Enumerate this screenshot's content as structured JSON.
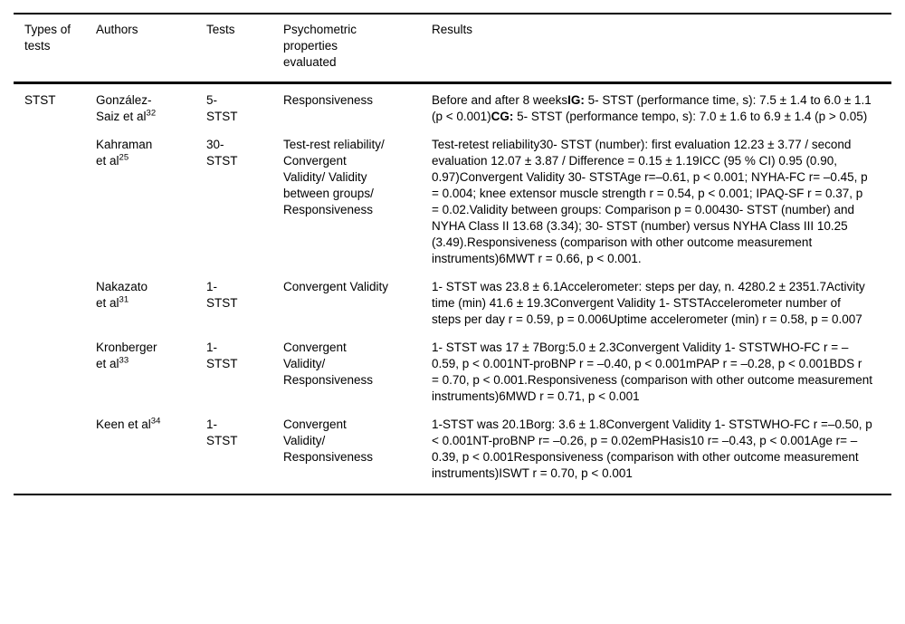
{
  "table": {
    "columns": [
      "Types of tests",
      "Authors",
      "Tests",
      "Psychometric properties evaluated",
      "Results"
    ],
    "rows": [
      {
        "type_of_test": "STST",
        "authors": "González-Saiz et al",
        "authors_ref": "32",
        "tests": "5- STST",
        "properties": "Responsiveness",
        "results": [
          {
            "text": "Before and after 8 weeks",
            "bold": false
          },
          {
            "text": "IG:",
            "bold": true
          },
          {
            "text": " 5- STST (performance time, s): 7.5 ± 1.4 to 6.0 ± 1.1 (p < 0.001)",
            "bold": false
          },
          {
            "text": "CG:",
            "bold": true
          },
          {
            "text": " 5- STST (performance tempo, s): 7.0 ± 1.6 to 6.9 ± 1.4 (p > 0.05)",
            "bold": false
          }
        ]
      },
      {
        "type_of_test": "",
        "authors": "Kahraman et al",
        "authors_ref": "25",
        "tests": "30- STST",
        "properties": "Test-rest reliability/ Convergent Validity/ Validity between groups/ Responsiveness",
        "results": [
          {
            "text": "Test-retest reliability30- STST (number): first evaluation 12.23 ± 3.77 / second evaluation 12.07 ± 3.87 / Difference = 0.15 ± 1.19ICC (95 % CI) 0.95 (0.90, 0.97)Convergent Validity 30- STSTAge r=–0.61, p < 0.001; NYHA-FC r= –0.45, p = 0.004; knee extensor muscle strength r = 0.54, p < 0.001; IPAQ-SF r = 0.37, p = 0.02.Validity between groups: Comparison p = 0.00430- STST (number) and NYHA Class II 13.68 (3.34); 30- STST (number) versus NYHA Class III 10.25 (3.49).Responsiveness (comparison with other outcome measurement instruments)6MWT r = 0.66, p < 0.001.",
            "bold": false
          }
        ]
      },
      {
        "type_of_test": "",
        "authors": "Nakazato et al",
        "authors_ref": "31",
        "tests": "1- STST",
        "properties": "Convergent Validity",
        "results": [
          {
            "text": "1- STST was 23.8 ± 6.1Accelerometer: steps per day, n. 4280.2 ± 2351.7Activity time (min) 41.6 ± 19.3Convergent Validity 1- STSTAccelerometer number of steps per day r = 0.59, p = 0.006Uptime accelerometer (min) r = 0.58, p = 0.007",
            "bold": false
          }
        ]
      },
      {
        "type_of_test": "",
        "authors": "Kronberger et al",
        "authors_ref": "33",
        "tests": "1- STST",
        "properties": "Convergent Validity/ Responsiveness",
        "results": [
          {
            "text": "1- STST was 17 ± 7Borg:5.0 ± 2.3Convergent Validity 1- STSTWHO-FC r = –0.59, p < 0.001NT-proBNP r = –0.40, p < 0.001mPAP r = –0.28, p < 0.001BDS r = 0.70, p < 0.001.Responsiveness (comparison with other outcome measurement instruments)6MWD r = 0.71, p < 0.001",
            "bold": false
          }
        ]
      },
      {
        "type_of_test": "",
        "authors": "Keen et al",
        "authors_ref": "34",
        "tests": "1- STST",
        "properties": "Convergent Validity/ Responsiveness",
        "results": [
          {
            "text": "1-STST was 20.1Borg: 3.6 ± 1.8Convergent Validity 1- STSTWHO-FC r =–0.50, p < 0.001NT-proBNP r= –0.26, p = 0.02emPHasis10 r= –0.43, p < 0.001Age r= –0.39, p < 0.001Responsiveness (comparison with other outcome measurement instruments)ISWT r = 0.70, p < 0.001",
            "bold": false
          }
        ]
      }
    ]
  }
}
